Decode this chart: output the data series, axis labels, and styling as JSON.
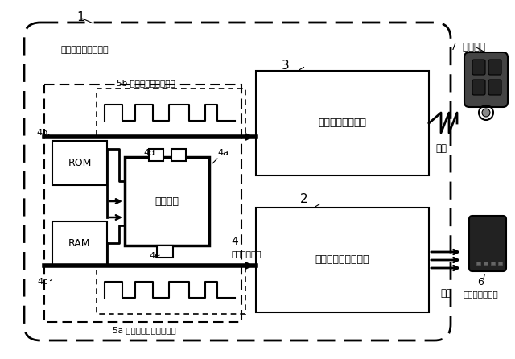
{
  "bg_color": "#ffffff",
  "outer_label": "1",
  "outer_sublabel": "非接触充電システム",
  "wireless_label": "無線通信ユニット",
  "wireless_num": "3",
  "charging_label": "非接触充電ユニット",
  "charging_num": "2",
  "control_num": "4",
  "control_sublabel": "制御ユニット",
  "rom_text": "ROM",
  "ram_text": "RAM",
  "maicon_text": "マイコン",
  "label_4a": "4a",
  "label_4b": "4b",
  "label_4c": "4c",
  "label_4d": "4d",
  "label_4e": "4e",
  "signal_5b": "5b 無線通信用制御信号",
  "signal_5a": "5a 非接触充電用制御信号",
  "comm_label": "通信",
  "charge_label": "充電",
  "key_label": "7  電子キー",
  "portable_num": "6",
  "portable_label": "ポータブル機器"
}
